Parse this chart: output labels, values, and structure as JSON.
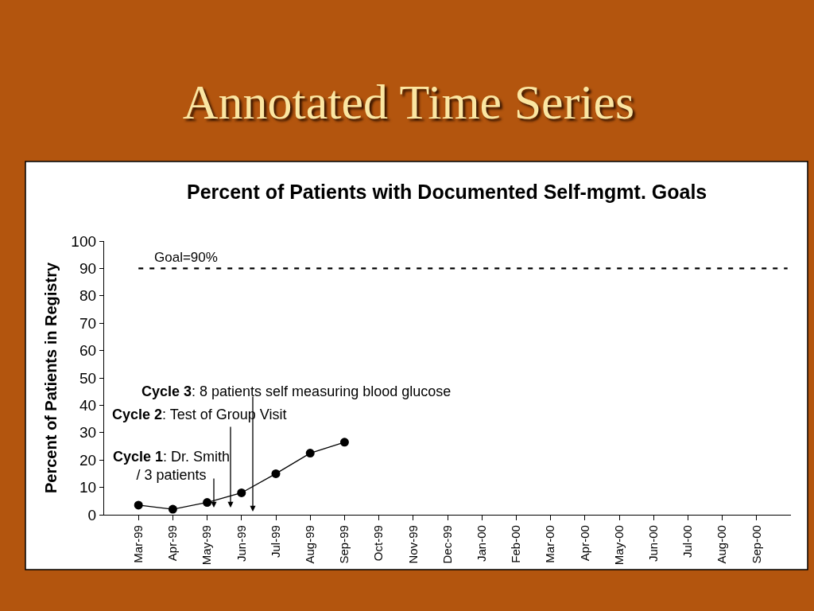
{
  "chart_data": {
    "type": "line",
    "title": "Annotated Time Series",
    "subtitle": "Percent of Patients with Documented Self-mgmt. Goals",
    "ylabel": "Percent of Patients in Registry",
    "categories": [
      "Mar-99",
      "Apr-99",
      "May-99",
      "Jun-99",
      "Jul-99",
      "Aug-99",
      "Sep-99",
      "Oct-99",
      "Nov-99",
      "Dec-99",
      "Jan-00",
      "Feb-00",
      "Mar-00",
      "Apr-00",
      "May-00",
      "Jun-00",
      "Jul-00",
      "Aug-00",
      "Sep-00"
    ],
    "series": [
      {
        "color": "#000000",
        "values": [
          3.5,
          2,
          4.5,
          8,
          15,
          22.5,
          26.5,
          null,
          null,
          null,
          null,
          null,
          null,
          null,
          null,
          null,
          null,
          null,
          null
        ]
      }
    ],
    "ylim": [
      0,
      100
    ],
    "yticks": [
      0,
      10,
      20,
      30,
      40,
      50,
      60,
      70,
      80,
      90,
      100
    ],
    "ref_lines": [
      {
        "axis": "y",
        "value": 90,
        "label": "Goal=90%",
        "color": "#000000",
        "line_style": "dashed"
      }
    ],
    "annotations": [
      "Cycle 1: Dr. Smith\n/ 3 patients",
      "Cycle 2: Test of Group Visit",
      "Cycle 3: 8 patients self measuring blood glucose"
    ],
    "marker": "circle",
    "line_style": "solid",
    "grid": false
  }
}
